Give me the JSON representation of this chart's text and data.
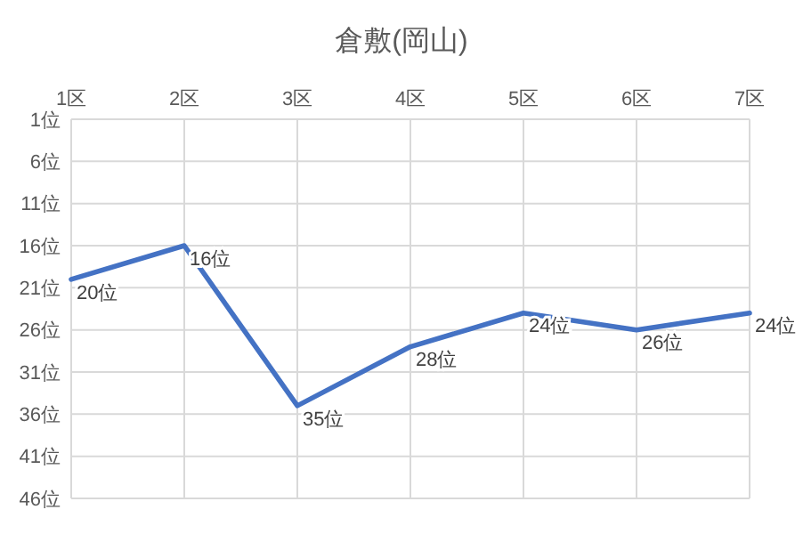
{
  "chart_data": {
    "type": "line",
    "title": "倉敷(岡山)",
    "categories": [
      "1区",
      "2区",
      "3区",
      "4区",
      "5区",
      "6区",
      "7区"
    ],
    "series": [
      {
        "color": "#4472c4",
        "values": [
          20,
          16,
          35,
          28,
          24,
          26,
          24
        ],
        "value_labels": [
          "20位",
          "16位",
          "35位",
          "28位",
          "24位",
          "26位",
          "24位"
        ]
      }
    ],
    "ylim": [
      46,
      1
    ],
    "yticks": [
      {
        "value": 1,
        "label": "1位"
      },
      {
        "value": 6,
        "label": "6位"
      },
      {
        "value": 11,
        "label": "11位"
      },
      {
        "value": 16,
        "label": "16位"
      },
      {
        "value": 21,
        "label": "21位"
      },
      {
        "value": 26,
        "label": "26位"
      },
      {
        "value": 31,
        "label": "31位"
      },
      {
        "value": 36,
        "label": "36位"
      },
      {
        "value": 41,
        "label": "41位"
      },
      {
        "value": 46,
        "label": "46位"
      }
    ],
    "grid": true,
    "marker": "none",
    "line_style": "solid"
  }
}
